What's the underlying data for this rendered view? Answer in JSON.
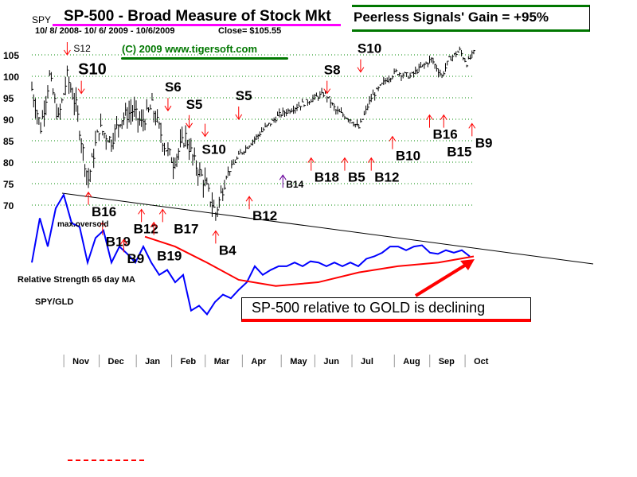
{
  "header": {
    "ticker": "SPY",
    "title": "SP-500 - Broad Measure of Stock Mkt",
    "date_range": "10/ 8/ 2008- 10/ 6/ 2009 - 10/6/2009",
    "close": "Close= $105.55",
    "copyright": "(C) 2009  www.tigersoft.com",
    "gain_box": "Peerless Signals' Gain = +95%"
  },
  "annotations": {
    "max_oversold": "max.oversold",
    "rs_label": "Relative Strength 65 day MA",
    "pair_label": "SPY/GLD",
    "callout": "SP-500 relative to GOLD is declining"
  },
  "colors": {
    "title_underline": "#ff00ff",
    "green": "#007700",
    "buy": "#ff0000",
    "sell": "#ff0000",
    "rs_line": "#0000ff",
    "ma_line": "#ff0000",
    "purple": "#660099"
  },
  "chart_data": {
    "type": "line",
    "title": "SP-500 - Broad Measure of Stock Mkt",
    "ylabel": "SPY",
    "ylim": [
      65,
      107
    ],
    "yticks": [
      "105",
      "100",
      "95",
      "90",
      "85",
      "80",
      "75",
      "70"
    ],
    "ytick_values": [
      105,
      100,
      95,
      90,
      85,
      80,
      75,
      70
    ],
    "months": [
      "Nov",
      "Dec",
      "Jan",
      "Feb",
      "Mar",
      "Apr",
      "May",
      "Jun",
      "Jul",
      "Aug",
      "Sep",
      "Oct"
    ],
    "month_day_index": [
      28,
      48,
      69,
      89,
      108,
      129,
      151,
      170,
      191,
      215,
      235,
      255
    ],
    "price_anchors": [
      [
        0,
        97
      ],
      [
        5,
        88
      ],
      [
        10,
        100
      ],
      [
        15,
        90
      ],
      [
        20,
        100
      ],
      [
        25,
        93
      ],
      [
        30,
        80
      ],
      [
        32,
        76
      ],
      [
        38,
        88
      ],
      [
        45,
        85
      ],
      [
        50,
        90
      ],
      [
        57,
        92
      ],
      [
        62,
        89
      ],
      [
        68,
        93
      ],
      [
        75,
        84
      ],
      [
        80,
        80
      ],
      [
        87,
        86
      ],
      [
        92,
        80
      ],
      [
        98,
        75
      ],
      [
        104,
        68
      ],
      [
        110,
        77
      ],
      [
        118,
        82
      ],
      [
        125,
        85
      ],
      [
        132,
        88
      ],
      [
        140,
        91
      ],
      [
        150,
        93
      ],
      [
        160,
        95
      ],
      [
        166,
        96
      ],
      [
        172,
        92
      ],
      [
        180,
        90
      ],
      [
        185,
        88
      ],
      [
        192,
        95
      ],
      [
        200,
        99
      ],
      [
        206,
        101
      ],
      [
        214,
        100
      ],
      [
        220,
        102
      ],
      [
        226,
        104
      ],
      [
        232,
        100
      ],
      [
        236,
        104
      ],
      [
        242,
        106
      ],
      [
        246,
        103
      ],
      [
        250,
        105.5
      ]
    ],
    "rs_values": [
      45,
      81,
      58,
      89,
      100,
      77,
      74,
      45,
      65,
      71,
      45,
      58,
      52,
      45,
      58,
      45,
      35,
      39,
      29,
      35,
      6,
      10,
      3,
      13,
      19,
      16,
      23,
      29,
      42,
      35,
      39,
      42,
      42,
      45,
      42,
      46,
      45,
      42,
      45,
      42,
      45,
      42,
      48,
      50,
      53,
      58,
      58,
      55,
      58,
      59,
      53,
      52,
      55,
      53,
      55,
      50
    ],
    "rs_ma_values": [
      [
        64,
        66
      ],
      [
        81,
        58
      ],
      [
        99,
        45
      ],
      [
        117,
        31
      ],
      [
        138,
        26
      ],
      [
        162,
        29
      ],
      [
        185,
        37
      ],
      [
        207,
        42
      ],
      [
        230,
        45
      ],
      [
        250,
        50
      ]
    ],
    "signals": [
      {
        "label": "S12",
        "type": "sell",
        "day": 20,
        "price": 105,
        "size": "small"
      },
      {
        "label": "S10",
        "type": "sell",
        "day": 28,
        "price": 96,
        "size": "big"
      },
      {
        "label": "S6",
        "type": "sell",
        "day": 77,
        "price": 92,
        "size": "med"
      },
      {
        "label": "S5",
        "type": "sell",
        "day": 89,
        "price": 88,
        "size": "med"
      },
      {
        "label": "S10",
        "type": "sell",
        "day": 98,
        "price": 86,
        "size": "med"
      },
      {
        "label": "S5",
        "type": "sell",
        "day": 117,
        "price": 90,
        "size": "med"
      },
      {
        "label": "S8",
        "type": "sell",
        "day": 167,
        "price": 96,
        "size": "med"
      },
      {
        "label": "S10",
        "type": "sell",
        "day": 186,
        "price": 101,
        "size": "med"
      },
      {
        "label": "B16",
        "type": "buy",
        "day": 32,
        "price": 73,
        "size": "med"
      },
      {
        "label": "B19",
        "type": "buy",
        "day": 40,
        "price": 66,
        "size": "med"
      },
      {
        "label": "B9",
        "type": "buy",
        "day": 52,
        "price": 62,
        "size": "med"
      },
      {
        "label": "B12",
        "type": "buy",
        "day": 62,
        "price": 69,
        "size": "med"
      },
      {
        "label": "B17",
        "type": "buy",
        "day": 74,
        "price": 69,
        "size": "med"
      },
      {
        "label": "B19",
        "type": "buy",
        "day": 69,
        "price": 66,
        "size": "med"
      },
      {
        "label": "B4",
        "type": "buy",
        "day": 104,
        "price": 64,
        "size": "med"
      },
      {
        "label": "B12",
        "type": "buy",
        "day": 123,
        "price": 72,
        "size": "med"
      },
      {
        "label": "B14",
        "type": "buy",
        "day": 142,
        "price": 77,
        "size": "small",
        "purple": true
      },
      {
        "label": "B18",
        "type": "buy",
        "day": 158,
        "price": 81,
        "size": "med"
      },
      {
        "label": "B5",
        "type": "buy",
        "day": 177,
        "price": 81,
        "size": "med"
      },
      {
        "label": "B12",
        "type": "buy",
        "day": 192,
        "price": 81,
        "size": "med"
      },
      {
        "label": "B10",
        "type": "buy",
        "day": 204,
        "price": 86,
        "size": "med"
      },
      {
        "label": "B16",
        "type": "buy",
        "day": 225,
        "price": 91,
        "size": "med"
      },
      {
        "label": "B15",
        "type": "buy",
        "day": 233,
        "price": 91,
        "size": "med"
      },
      {
        "label": "B9",
        "type": "buy",
        "day": 249,
        "price": 89,
        "size": "med"
      }
    ]
  }
}
